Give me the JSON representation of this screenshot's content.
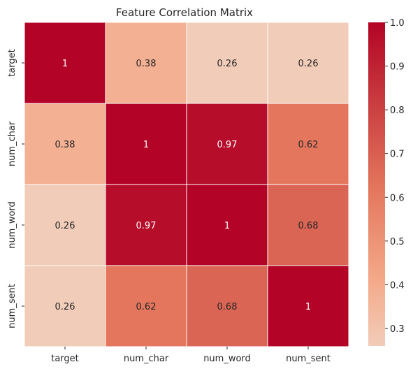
{
  "chart_data": {
    "type": "heatmap",
    "title": "Feature Correlation Matrix",
    "x_labels": [
      "target",
      "num_char",
      "num_word",
      "num_sent"
    ],
    "y_labels": [
      "target",
      "num_char",
      "num_word",
      "num_sent"
    ],
    "values": [
      [
        1,
        0.38,
        0.26,
        0.26
      ],
      [
        0.38,
        1,
        0.97,
        0.62
      ],
      [
        0.26,
        0.97,
        1,
        0.68
      ],
      [
        0.26,
        0.62,
        0.68,
        1
      ]
    ],
    "cell_text": [
      [
        "1",
        "0.38",
        "0.26",
        "0.26"
      ],
      [
        "0.38",
        "1",
        "0.97",
        "0.62"
      ],
      [
        "0.26",
        "0.97",
        "1",
        "0.68"
      ],
      [
        "0.26",
        "0.62",
        "0.68",
        "1"
      ]
    ],
    "colormap": "coolwarm-red-half",
    "vmin": 0.26,
    "vmax": 1.0,
    "colorbar_ticks": [
      0.3,
      0.4,
      0.5,
      0.6,
      0.7,
      0.8,
      0.9,
      1.0
    ],
    "colorbar_tick_labels": [
      "0.3",
      "0.4",
      "0.5",
      "0.6",
      "0.7",
      "0.8",
      "0.9",
      "1.0"
    ],
    "grid_line_color": "#ffffff"
  }
}
